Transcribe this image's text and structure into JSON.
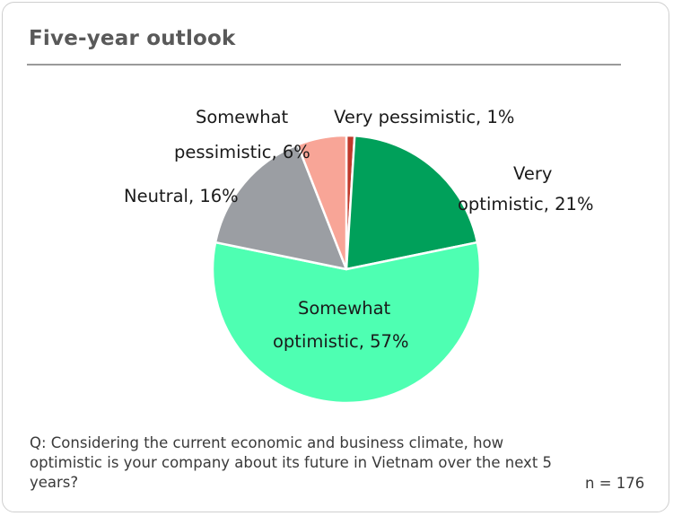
{
  "title": "Five-year outlook",
  "chart_data": {
    "type": "pie",
    "slices": [
      {
        "label": "Very pessimistic, 1%",
        "value": 1,
        "color": "#c0392b"
      },
      {
        "label": "Very optimistic, 21%",
        "value": 21,
        "color": "#00a05a"
      },
      {
        "label": "Somewhat optimistic, 57%",
        "value": 57,
        "color": "#4effb2"
      },
      {
        "label": "Neutral, 16%",
        "value": 16,
        "color": "#9b9ea3"
      },
      {
        "label": "Somewhat pessimistic, 6%",
        "value": 6,
        "color": "#f8a597"
      }
    ]
  },
  "labels": {
    "very_pessimistic": "Very pessimistic, 1%",
    "very_optimistic_1": "Very",
    "very_optimistic_2": "optimistic, 21%",
    "somewhat_optimistic_1": "Somewhat",
    "somewhat_optimistic_2": "optimistic, 57%",
    "neutral": "Neutral, 16%",
    "somewhat_pessimistic_1": "Somewhat",
    "somewhat_pessimistic_2": "pessimistic, 6%"
  },
  "question": "Q: Considering the current economic and business climate, how optimistic is your company about its future in Vietnam over the next 5 years?",
  "n_label": "n = 176"
}
